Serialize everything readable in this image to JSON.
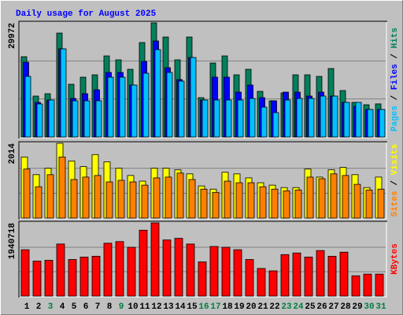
{
  "chart_data": [
    {
      "type": "bar",
      "title": "Daily usage for August 2025",
      "ylim": [
        0,
        29972
      ],
      "yticks": [
        29972
      ],
      "series": [
        {
          "name": "Hits",
          "color": "#00805c",
          "values": [
            21083,
            10748,
            11369,
            27284,
            13849,
            15709,
            16329,
            21290,
            20257,
            17776,
            24804,
            29972,
            26251,
            20257,
            26251,
            10335,
            19430,
            21290,
            16329,
            17776,
            11989,
            9508,
            11575,
            16329,
            16329,
            15916,
            17983,
            12195,
            9095,
            8475,
            8700
          ]
        },
        {
          "name": "Files",
          "color": "#0000ff",
          "values": [
            19637,
            9095,
            9715,
            23150,
            10128,
            11369,
            12402,
            16949,
            16949,
            13642,
            19843,
            25217,
            18190,
            15089,
            20877,
            9715,
            15709,
            15709,
            11782,
            13642,
            10335,
            9508,
            11782,
            11782,
            10748,
            11782,
            10748,
            9095,
            8061,
            7235,
            7235
          ]
        },
        {
          "name": "Pages",
          "color": "#00c0ff",
          "values": [
            15916,
            8681,
            9715,
            23150,
            9508,
            9508,
            9508,
            15709,
            15709,
            13642,
            16743,
            22944,
            16949,
            14676,
            20877,
            9715,
            9715,
            9715,
            9715,
            10128,
            7855,
            6408,
            9715,
            10128,
            10128,
            10748,
            10748,
            9095,
            9095,
            7235,
            7235
          ]
        }
      ]
    },
    {
      "type": "bar",
      "ylim": [
        0,
        2014
      ],
      "yticks": [
        2014
      ],
      "series": [
        {
          "name": "Visits",
          "color": "#ffff00",
          "values": [
            1646,
            1170,
            1343,
            2014,
            1538,
            1386,
            1711,
            1516,
            1343,
            1148,
            996,
            1343,
            1343,
            1300,
            1191,
            866,
            780,
            1235,
            1191,
            1083,
            953,
            888,
            823,
            823,
            1321,
            1105,
            1300,
            1365,
            1170,
            823,
            1105
          ]
        },
        {
          "name": "Sites",
          "color": "#ff8000",
          "values": [
            1321,
            845,
            1170,
            1646,
            1040,
            1105,
            1148,
            975,
            1018,
            975,
            888,
            1083,
            1105,
            1213,
            1040,
            780,
            693,
            996,
            953,
            953,
            845,
            780,
            736,
            758,
            1105,
            1061,
            1191,
            1148,
            910,
            758,
            780
          ]
        }
      ]
    },
    {
      "type": "bar",
      "ylim": [
        0,
        1940718
      ],
      "yticks": [
        1940718
      ],
      "categories": [
        "1",
        "2",
        "3",
        "4",
        "5",
        "6",
        "7",
        "8",
        "9",
        "10",
        "11",
        "12",
        "13",
        "14",
        "15",
        "16",
        "17",
        "18",
        "19",
        "20",
        "21",
        "22",
        "23",
        "24",
        "25",
        "26",
        "27",
        "28",
        "29",
        "30",
        "31"
      ],
      "category_colors": [
        "#000000",
        "#000000",
        "#008040",
        "#000000",
        "#000000",
        "#000000",
        "#000000",
        "#000000",
        "#008040",
        "#000000",
        "#000000",
        "#000000",
        "#000000",
        "#000000",
        "#000000",
        "#008040",
        "#008040",
        "#000000",
        "#000000",
        "#000000",
        "#000000",
        "#000000",
        "#008040",
        "#008040",
        "#000000",
        "#000000",
        "#000000",
        "#000000",
        "#000000",
        "#008040",
        "#008040"
      ],
      "series": [
        {
          "name": "KBytes",
          "color": "#ff0000",
          "values": [
            1229091,
            927209,
            948772,
            1380032,
            970335,
            1035024,
            1056587,
            1401595,
            1444721,
            1293780,
            1746603,
            1940718,
            1487847,
            1530973,
            1380032,
            905646,
            1315343,
            1293780,
            1229091,
            970335,
            733142,
            668453,
            1099713,
            1142839,
            1035024,
            1207528,
            1056587,
            1164402,
            539075,
            582201,
            582201
          ]
        }
      ]
    }
  ]
}
